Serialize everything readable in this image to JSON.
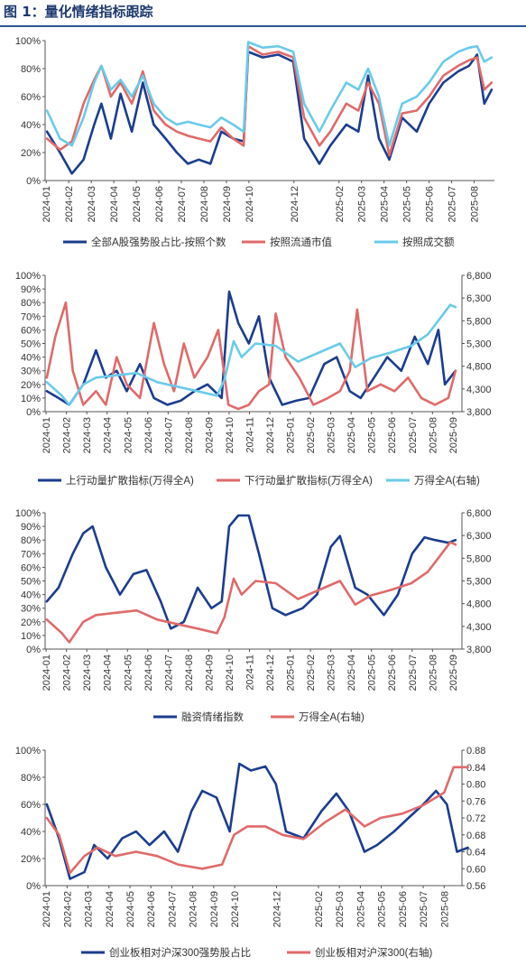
{
  "figure": {
    "title": "图 1：量化情绪指标跟踪"
  },
  "x_tick_labels": {
    "panel1": [
      "2024-01",
      "2024-02",
      "2024-03",
      "2024-04",
      "2024-05",
      "2024-06",
      "2024-07",
      "2024-08",
      "2024-09",
      "2024-10",
      "2024-12",
      "2025-02",
      "2025-03",
      "2025-04",
      "2025-05",
      "2025-06",
      "2025-07",
      "2025-08"
    ],
    "panel234": [
      "2024-01",
      "2024-02",
      "2024-03",
      "2024-04",
      "2024-05",
      "2024-06",
      "2024-07",
      "2024-08",
      "2024-09",
      "2024-10",
      "2024-11",
      "2024-12",
      "2025-01",
      "2025-02",
      "2025-03",
      "2025-04",
      "2025-05",
      "2025-06",
      "2025-07",
      "2025-08",
      "2025-09"
    ]
  },
  "colors": {
    "dark_blue": "#1b3d8f",
    "red": "#e06a6a",
    "light_blue": "#69cbea",
    "axis": "#555555"
  },
  "chart_data": [
    {
      "type": "line",
      "ylim": [
        0,
        100
      ],
      "yticks": [
        "0%",
        "20%",
        "40%",
        "60%",
        "80%",
        "100%"
      ],
      "series": [
        {
          "name": "全部A股强势股占比-按照个数",
          "color_key": "dark_blue",
          "x": [
            "2024-01-02",
            "2024-01-20",
            "2024-02-05",
            "2024-02-20",
            "2024-03-05",
            "2024-03-15",
            "2024-03-28",
            "2024-04-10",
            "2024-04-25",
            "2024-05-10",
            "2024-05-25",
            "2024-06-10",
            "2024-06-25",
            "2024-07-10",
            "2024-07-25",
            "2024-08-10",
            "2024-08-25",
            "2024-09-10",
            "2024-09-24",
            "2024-09-30",
            "2024-10-20",
            "2024-11-10",
            "2024-11-30",
            "2024-12-15",
            "2025-01-05",
            "2025-01-20",
            "2025-02-10",
            "2025-02-25",
            "2025-03-10",
            "2025-03-25",
            "2025-04-08",
            "2025-04-25",
            "2025-05-15",
            "2025-06-01",
            "2025-06-20",
            "2025-07-10",
            "2025-07-25",
            "2025-08-05",
            "2025-08-15",
            "2025-08-25"
          ],
          "values": [
            35,
            20,
            5,
            15,
            40,
            55,
            30,
            62,
            35,
            70,
            40,
            30,
            20,
            12,
            15,
            12,
            35,
            30,
            28,
            92,
            88,
            90,
            85,
            30,
            12,
            25,
            40,
            35,
            75,
            30,
            15,
            45,
            35,
            55,
            70,
            78,
            82,
            90,
            55,
            65
          ]
        },
        {
          "name": "按照流通市值",
          "color_key": "red",
          "x": [
            "2024-01-02",
            "2024-01-20",
            "2024-02-05",
            "2024-02-20",
            "2024-03-05",
            "2024-03-15",
            "2024-03-28",
            "2024-04-10",
            "2024-04-25",
            "2024-05-10",
            "2024-05-25",
            "2024-06-10",
            "2024-06-25",
            "2024-07-10",
            "2024-07-25",
            "2024-08-10",
            "2024-08-25",
            "2024-09-10",
            "2024-09-24",
            "2024-09-30",
            "2024-10-20",
            "2024-11-10",
            "2024-11-30",
            "2024-12-15",
            "2025-01-05",
            "2025-01-20",
            "2025-02-10",
            "2025-02-25",
            "2025-03-10",
            "2025-03-25",
            "2025-04-08",
            "2025-04-25",
            "2025-05-15",
            "2025-06-01",
            "2025-06-20",
            "2025-07-10",
            "2025-07-25",
            "2025-08-05",
            "2025-08-15",
            "2025-08-25"
          ],
          "values": [
            30,
            22,
            28,
            55,
            72,
            82,
            60,
            70,
            55,
            78,
            50,
            40,
            35,
            32,
            30,
            28,
            38,
            30,
            25,
            96,
            90,
            92,
            88,
            45,
            25,
            35,
            55,
            50,
            70,
            55,
            18,
            48,
            50,
            60,
            75,
            82,
            86,
            88,
            65,
            70
          ]
        },
        {
          "name": "按照成交额",
          "color_key": "light_blue",
          "x": [
            "2024-01-02",
            "2024-01-20",
            "2024-02-05",
            "2024-02-20",
            "2024-03-05",
            "2024-03-15",
            "2024-03-28",
            "2024-04-10",
            "2024-04-25",
            "2024-05-10",
            "2024-05-25",
            "2024-06-10",
            "2024-06-25",
            "2024-07-10",
            "2024-07-25",
            "2024-08-10",
            "2024-08-25",
            "2024-09-10",
            "2024-09-24",
            "2024-09-30",
            "2024-10-20",
            "2024-11-10",
            "2024-11-30",
            "2024-12-15",
            "2025-01-05",
            "2025-01-20",
            "2025-02-10",
            "2025-02-25",
            "2025-03-10",
            "2025-03-25",
            "2025-04-08",
            "2025-04-25",
            "2025-05-15",
            "2025-06-01",
            "2025-06-20",
            "2025-07-10",
            "2025-07-25",
            "2025-08-05",
            "2025-08-15",
            "2025-08-25"
          ],
          "values": [
            50,
            30,
            25,
            45,
            70,
            82,
            65,
            72,
            60,
            75,
            55,
            45,
            40,
            42,
            40,
            38,
            45,
            40,
            35,
            99,
            95,
            96,
            92,
            55,
            35,
            50,
            70,
            65,
            80,
            60,
            25,
            55,
            60,
            70,
            85,
            92,
            95,
            96,
            85,
            88
          ]
        }
      ]
    },
    {
      "type": "line",
      "ylim": [
        0,
        100
      ],
      "yticks": [
        "0%",
        "10%",
        "20%",
        "30%",
        "40%",
        "50%",
        "60%",
        "70%",
        "80%",
        "90%",
        "100%"
      ],
      "y2lim": [
        3800,
        6800
      ],
      "y2ticks": [
        "3,800",
        "4,300",
        "4,800",
        "5,300",
        "5,800",
        "6,300",
        "6,800"
      ],
      "series": [
        {
          "name": "上行动量扩散指标(万得全A)",
          "color_key": "dark_blue",
          "axis": "left",
          "x": [
            "2024-01-02",
            "2024-01-20",
            "2024-02-05",
            "2024-02-25",
            "2024-03-15",
            "2024-03-30",
            "2024-04-15",
            "2024-04-30",
            "2024-05-20",
            "2024-06-10",
            "2024-06-30",
            "2024-07-20",
            "2024-08-10",
            "2024-08-30",
            "2024-09-20",
            "2024-10-01",
            "2024-10-15",
            "2024-10-31",
            "2024-11-15",
            "2024-11-30",
            "2024-12-20",
            "2025-01-10",
            "2025-01-30",
            "2025-02-20",
            "2025-03-10",
            "2025-03-30",
            "2025-04-15",
            "2025-05-05",
            "2025-05-25",
            "2025-06-15",
            "2025-07-05",
            "2025-07-25",
            "2025-08-10",
            "2025-08-20",
            "2025-09-05"
          ],
          "values": [
            15,
            10,
            5,
            20,
            45,
            25,
            30,
            15,
            35,
            10,
            5,
            8,
            15,
            20,
            10,
            88,
            65,
            50,
            70,
            25,
            5,
            8,
            10,
            35,
            40,
            15,
            10,
            25,
            40,
            30,
            55,
            35,
            60,
            20,
            30
          ]
        },
        {
          "name": "下行动量扩散指标(万得全A)",
          "color_key": "red",
          "axis": "left",
          "x": [
            "2024-01-02",
            "2024-01-15",
            "2024-01-31",
            "2024-02-10",
            "2024-02-25",
            "2024-03-15",
            "2024-03-30",
            "2024-04-15",
            "2024-04-30",
            "2024-05-20",
            "2024-06-10",
            "2024-06-25",
            "2024-07-10",
            "2024-07-25",
            "2024-08-10",
            "2024-08-30",
            "2024-09-15",
            "2024-09-30",
            "2024-10-15",
            "2024-10-31",
            "2024-11-15",
            "2024-11-30",
            "2024-12-10",
            "2024-12-25",
            "2025-01-15",
            "2025-02-05",
            "2025-02-25",
            "2025-03-15",
            "2025-03-30",
            "2025-04-10",
            "2025-04-25",
            "2025-05-15",
            "2025-06-05",
            "2025-06-25",
            "2025-07-15",
            "2025-08-05",
            "2025-08-25",
            "2025-09-05"
          ],
          "values": [
            25,
            55,
            80,
            30,
            5,
            15,
            5,
            40,
            20,
            10,
            65,
            35,
            15,
            50,
            25,
            40,
            60,
            5,
            2,
            5,
            15,
            20,
            72,
            40,
            25,
            5,
            10,
            15,
            30,
            75,
            15,
            20,
            15,
            25,
            10,
            5,
            10,
            30
          ]
        },
        {
          "name": "万得全A(右轴)",
          "color_key": "light_blue",
          "axis": "right",
          "x": [
            "2024-01-02",
            "2024-01-25",
            "2024-02-05",
            "2024-02-25",
            "2024-03-15",
            "2024-04-15",
            "2024-05-15",
            "2024-06-15",
            "2024-07-15",
            "2024-08-15",
            "2024-09-13",
            "2024-09-24",
            "2024-10-08",
            "2024-10-20",
            "2024-11-10",
            "2024-12-10",
            "2025-01-13",
            "2025-02-20",
            "2025-03-15",
            "2025-04-07",
            "2025-04-30",
            "2025-05-30",
            "2025-06-30",
            "2025-07-25",
            "2025-08-15",
            "2025-08-28",
            "2025-09-05"
          ],
          "values": [
            4450,
            4150,
            3950,
            4400,
            4550,
            4600,
            4650,
            4450,
            4350,
            4250,
            4150,
            4500,
            5350,
            5000,
            5300,
            5250,
            4900,
            5150,
            5300,
            4780,
            4980,
            5100,
            5250,
            5500,
            5900,
            6150,
            6100
          ]
        }
      ]
    },
    {
      "type": "line",
      "ylim": [
        0,
        100
      ],
      "yticks": [
        "0%",
        "10%",
        "20%",
        "30%",
        "40%",
        "50%",
        "60%",
        "70%",
        "80%",
        "90%",
        "100%"
      ],
      "y2lim": [
        3800,
        6800
      ],
      "y2ticks": [
        "3,800",
        "4,300",
        "4,800",
        "5,300",
        "5,800",
        "6,300",
        "6,800"
      ],
      "series": [
        {
          "name": "融资情绪指数",
          "color_key": "dark_blue",
          "axis": "left",
          "x": [
            "2024-01-02",
            "2024-01-20",
            "2024-02-10",
            "2024-02-25",
            "2024-03-10",
            "2024-03-30",
            "2024-04-20",
            "2024-05-10",
            "2024-05-30",
            "2024-06-20",
            "2024-07-05",
            "2024-07-25",
            "2024-08-15",
            "2024-09-05",
            "2024-09-20",
            "2024-10-01",
            "2024-10-15",
            "2024-10-31",
            "2024-11-15",
            "2024-12-05",
            "2024-12-25",
            "2025-01-20",
            "2025-02-10",
            "2025-03-01",
            "2025-03-15",
            "2025-04-07",
            "2025-04-25",
            "2025-05-20",
            "2025-06-10",
            "2025-07-01",
            "2025-07-20",
            "2025-08-05",
            "2025-08-25",
            "2025-09-05"
          ],
          "values": [
            35,
            45,
            70,
            85,
            90,
            60,
            40,
            55,
            58,
            35,
            15,
            20,
            45,
            30,
            35,
            90,
            98,
            98,
            70,
            30,
            25,
            30,
            40,
            75,
            83,
            45,
            40,
            25,
            40,
            70,
            82,
            80,
            78,
            80
          ]
        },
        {
          "name": "万得全A(右轴)",
          "color_key": "red",
          "axis": "right",
          "x": [
            "2024-01-02",
            "2024-01-25",
            "2024-02-05",
            "2024-02-25",
            "2024-03-15",
            "2024-04-15",
            "2024-05-15",
            "2024-06-15",
            "2024-07-15",
            "2024-08-15",
            "2024-09-13",
            "2024-09-24",
            "2024-10-08",
            "2024-10-20",
            "2024-11-10",
            "2024-12-10",
            "2025-01-13",
            "2025-02-20",
            "2025-03-15",
            "2025-04-07",
            "2025-04-30",
            "2025-05-30",
            "2025-06-30",
            "2025-07-25",
            "2025-08-15",
            "2025-08-28",
            "2025-09-05"
          ],
          "values": [
            4450,
            4150,
            3950,
            4400,
            4550,
            4600,
            4650,
            4450,
            4350,
            4250,
            4150,
            4500,
            5350,
            5000,
            5300,
            5250,
            4900,
            5150,
            5300,
            4780,
            4980,
            5100,
            5250,
            5500,
            5900,
            6150,
            6100
          ]
        }
      ]
    },
    {
      "type": "line",
      "ylim": [
        0,
        100
      ],
      "yticks": [
        "0%",
        "20%",
        "40%",
        "60%",
        "80%",
        "100%"
      ],
      "y2lim": [
        0.56,
        0.88
      ],
      "y2ticks": [
        "0.56",
        "0.60",
        "0.64",
        "0.68",
        "0.72",
        "0.76",
        "0.80",
        "0.84",
        "0.88"
      ],
      "series": [
        {
          "name": "创业板相对沪深300强势股占比",
          "color_key": "dark_blue",
          "axis": "left",
          "x": [
            "2024-01-02",
            "2024-01-20",
            "2024-02-05",
            "2024-02-25",
            "2024-03-10",
            "2024-03-30",
            "2024-04-20",
            "2024-05-10",
            "2024-05-30",
            "2024-06-20",
            "2024-07-10",
            "2024-07-30",
            "2024-08-15",
            "2024-09-05",
            "2024-09-24",
            "2024-10-08",
            "2024-10-25",
            "2024-11-15",
            "2024-11-30",
            "2024-12-15",
            "2025-01-10",
            "2025-02-05",
            "2025-02-25",
            "2025-03-15",
            "2025-04-07",
            "2025-04-25",
            "2025-05-20",
            "2025-06-10",
            "2025-07-01",
            "2025-07-20",
            "2025-08-05",
            "2025-08-20",
            "2025-09-05"
          ],
          "values": [
            60,
            35,
            5,
            10,
            30,
            20,
            35,
            40,
            30,
            40,
            25,
            55,
            70,
            65,
            40,
            90,
            85,
            88,
            75,
            40,
            35,
            55,
            68,
            55,
            25,
            30,
            40,
            50,
            60,
            70,
            60,
            25,
            28
          ]
        },
        {
          "name": "创业板相对沪深300(右轴)",
          "color_key": "red",
          "axis": "right",
          "x": [
            "2024-01-02",
            "2024-01-20",
            "2024-02-05",
            "2024-02-25",
            "2024-03-15",
            "2024-04-10",
            "2024-05-10",
            "2024-06-10",
            "2024-07-10",
            "2024-08-15",
            "2024-09-13",
            "2024-09-30",
            "2024-10-20",
            "2024-11-15",
            "2024-12-10",
            "2025-01-10",
            "2025-02-10",
            "2025-03-10",
            "2025-04-07",
            "2025-04-30",
            "2025-06-01",
            "2025-07-01",
            "2025-08-01",
            "2025-08-15",
            "2025-09-05"
          ],
          "values": [
            0.72,
            0.68,
            0.59,
            0.63,
            0.65,
            0.63,
            0.64,
            0.63,
            0.61,
            0.6,
            0.61,
            0.68,
            0.7,
            0.7,
            0.68,
            0.67,
            0.71,
            0.74,
            0.7,
            0.72,
            0.73,
            0.75,
            0.78,
            0.84,
            0.84
          ]
        }
      ]
    }
  ]
}
